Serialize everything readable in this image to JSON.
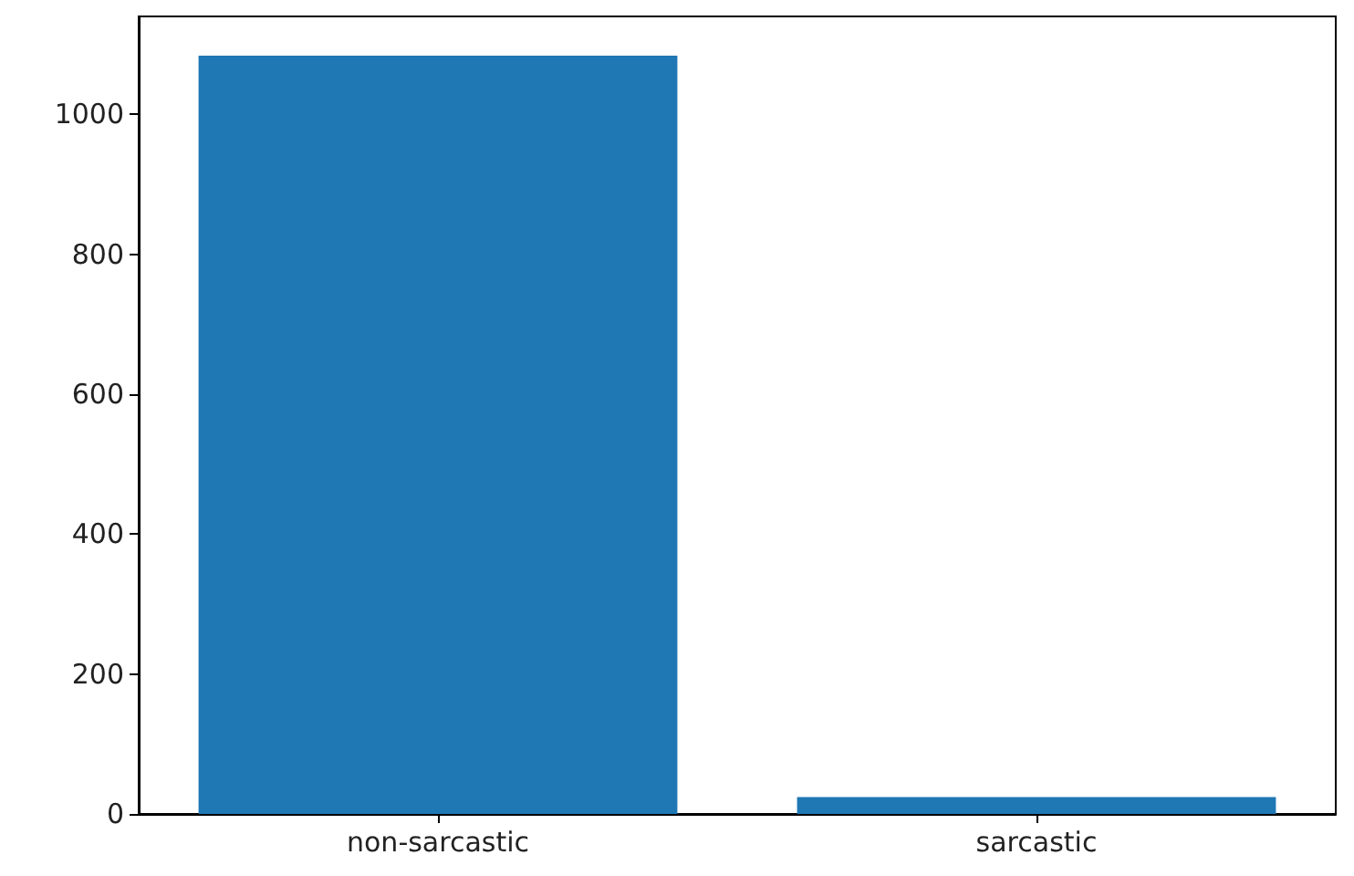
{
  "chart_data": {
    "type": "bar",
    "categories": [
      "non-sarcastic",
      "sarcastic"
    ],
    "values": [
      1084,
      24
    ],
    "color": "#1f77b4",
    "ylim": [
      0,
      1140
    ],
    "yticks": [
      0,
      200,
      400,
      600,
      800,
      1000
    ],
    "grid": false
  }
}
